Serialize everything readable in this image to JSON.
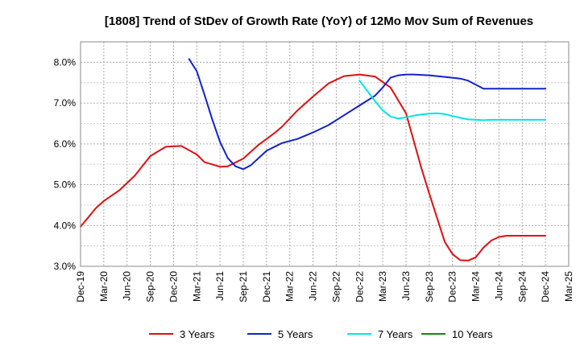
{
  "chart_data": {
    "type": "line",
    "title": "[1808]  Trend of StDev of Growth Rate (YoY) of 12Mo Mov Sum of Revenues",
    "xlabel": "",
    "ylabel": "",
    "ylim": [
      3.0,
      8.5
    ],
    "y_ticks": [
      "3.0%",
      "4.0%",
      "5.0%",
      "6.0%",
      "7.0%",
      "8.0%"
    ],
    "y_tick_values": [
      3.0,
      4.0,
      5.0,
      6.0,
      7.0,
      8.0
    ],
    "x_tick_labels": [
      "Dec-19",
      "Mar-20",
      "Jun-20",
      "Sep-20",
      "Dec-20",
      "Mar-21",
      "Jun-21",
      "Sep-21",
      "Dec-21",
      "Mar-22",
      "Jun-22",
      "Sep-22",
      "Dec-22",
      "Mar-23",
      "Jun-23",
      "Sep-23",
      "Dec-23",
      "Mar-24",
      "Jun-24",
      "Sep-24",
      "Dec-24",
      "Mar-25"
    ],
    "x_range_months": [
      0,
      63
    ],
    "grid": true,
    "legend_position": "bottom",
    "series": [
      {
        "name": "3 Years",
        "color": "#dd1111",
        "x": [
          0,
          2,
          3,
          5,
          7,
          9,
          11,
          13,
          15,
          16,
          18,
          19,
          21,
          23,
          24,
          25,
          26,
          28,
          30,
          32,
          34,
          36,
          38,
          40,
          42,
          44,
          45,
          47,
          48,
          49,
          50,
          51,
          52,
          53,
          54,
          55,
          56,
          57,
          58,
          59,
          60
        ],
        "values": [
          3.97,
          4.43,
          4.6,
          4.86,
          5.22,
          5.7,
          5.93,
          5.95,
          5.74,
          5.55,
          5.44,
          5.45,
          5.64,
          5.98,
          6.12,
          6.26,
          6.42,
          6.82,
          7.16,
          7.48,
          7.66,
          7.7,
          7.65,
          7.38,
          6.75,
          5.4,
          4.78,
          3.6,
          3.3,
          3.15,
          3.14,
          3.22,
          3.46,
          3.63,
          3.72,
          3.75,
          3.75,
          3.75,
          3.75,
          3.75,
          3.75
        ]
      },
      {
        "name": "5 Years",
        "color": "#1122cc",
        "x": [
          14,
          15,
          16,
          17,
          18,
          19,
          20,
          21,
          22,
          24,
          26,
          28,
          30,
          32,
          34,
          36,
          38,
          39,
          40,
          41,
          42,
          43,
          44,
          45,
          46,
          48,
          49,
          50,
          51,
          52,
          53,
          54,
          55,
          56,
          57,
          58,
          59,
          60
        ],
        "values": [
          8.08,
          7.78,
          7.2,
          6.6,
          6.05,
          5.65,
          5.45,
          5.38,
          5.48,
          5.83,
          6.02,
          6.12,
          6.28,
          6.46,
          6.7,
          6.94,
          7.18,
          7.38,
          7.62,
          7.68,
          7.7,
          7.7,
          7.69,
          7.68,
          7.66,
          7.62,
          7.6,
          7.55,
          7.45,
          7.35,
          7.35,
          7.35,
          7.35,
          7.35,
          7.35,
          7.35,
          7.35,
          7.35
        ]
      },
      {
        "name": "7 Years",
        "color": "#00e5e5",
        "x": [
          36,
          37,
          38,
          39,
          40,
          41,
          42,
          43,
          44,
          45,
          46,
          47,
          48,
          49,
          50,
          51,
          52,
          53,
          54,
          55,
          56,
          57,
          58,
          59,
          60
        ],
        "values": [
          7.55,
          7.3,
          7.05,
          6.82,
          6.67,
          6.62,
          6.65,
          6.69,
          6.72,
          6.74,
          6.75,
          6.73,
          6.68,
          6.64,
          6.6,
          6.59,
          6.58,
          6.59,
          6.59,
          6.59,
          6.59,
          6.59,
          6.59,
          6.59,
          6.59
        ]
      },
      {
        "name": "10 Years",
        "color": "#118811",
        "x": [],
        "values": []
      }
    ]
  }
}
